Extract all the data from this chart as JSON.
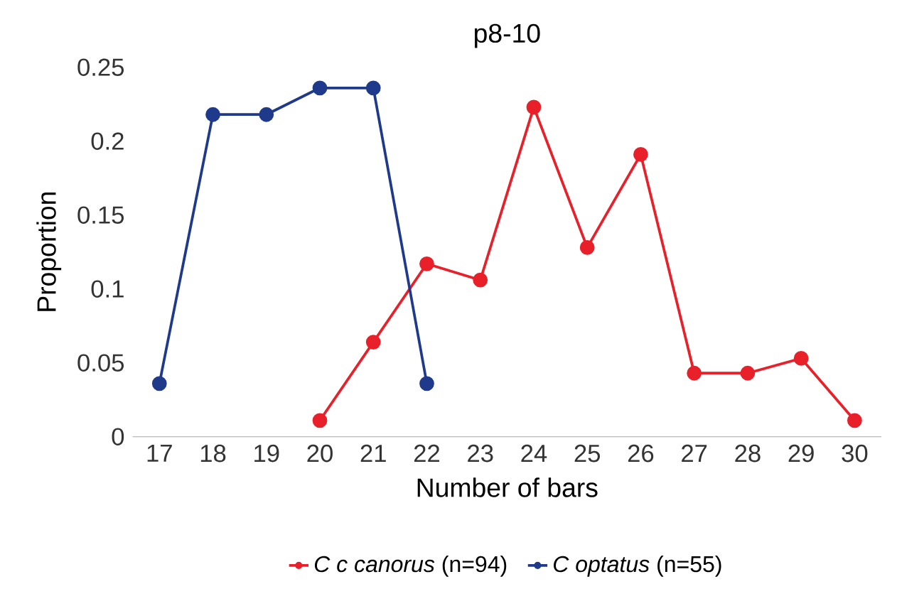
{
  "chart_data": {
    "type": "line",
    "title": "p8-10",
    "xlabel": "Number of bars",
    "ylabel": "Proportion",
    "categories": [
      "17",
      "18",
      "19",
      "20",
      "21",
      "22",
      "23",
      "24",
      "25",
      "26",
      "27",
      "28",
      "29",
      "30"
    ],
    "series": [
      {
        "name": "*C c canorus* (n=94)",
        "color": "#e8202a",
        "values": [
          null,
          null,
          null,
          0.011,
          0.064,
          0.117,
          0.106,
          0.223,
          0.128,
          0.191,
          0.043,
          0.043,
          0.053,
          0.011
        ]
      },
      {
        "name": "*C optatus* (n=55)",
        "color": "#1f3a8a",
        "values": [
          0.036,
          0.218,
          0.218,
          0.236,
          0.236,
          0.036,
          null,
          null,
          null,
          null,
          null,
          null,
          null,
          null
        ]
      }
    ],
    "ylim": [
      0,
      0.25
    ],
    "yticks": [
      0,
      0.05,
      0.1,
      0.15,
      0.2,
      0.25
    ],
    "grid": false,
    "legend": "bottom",
    "marker": "circle",
    "line_style": "solid"
  }
}
